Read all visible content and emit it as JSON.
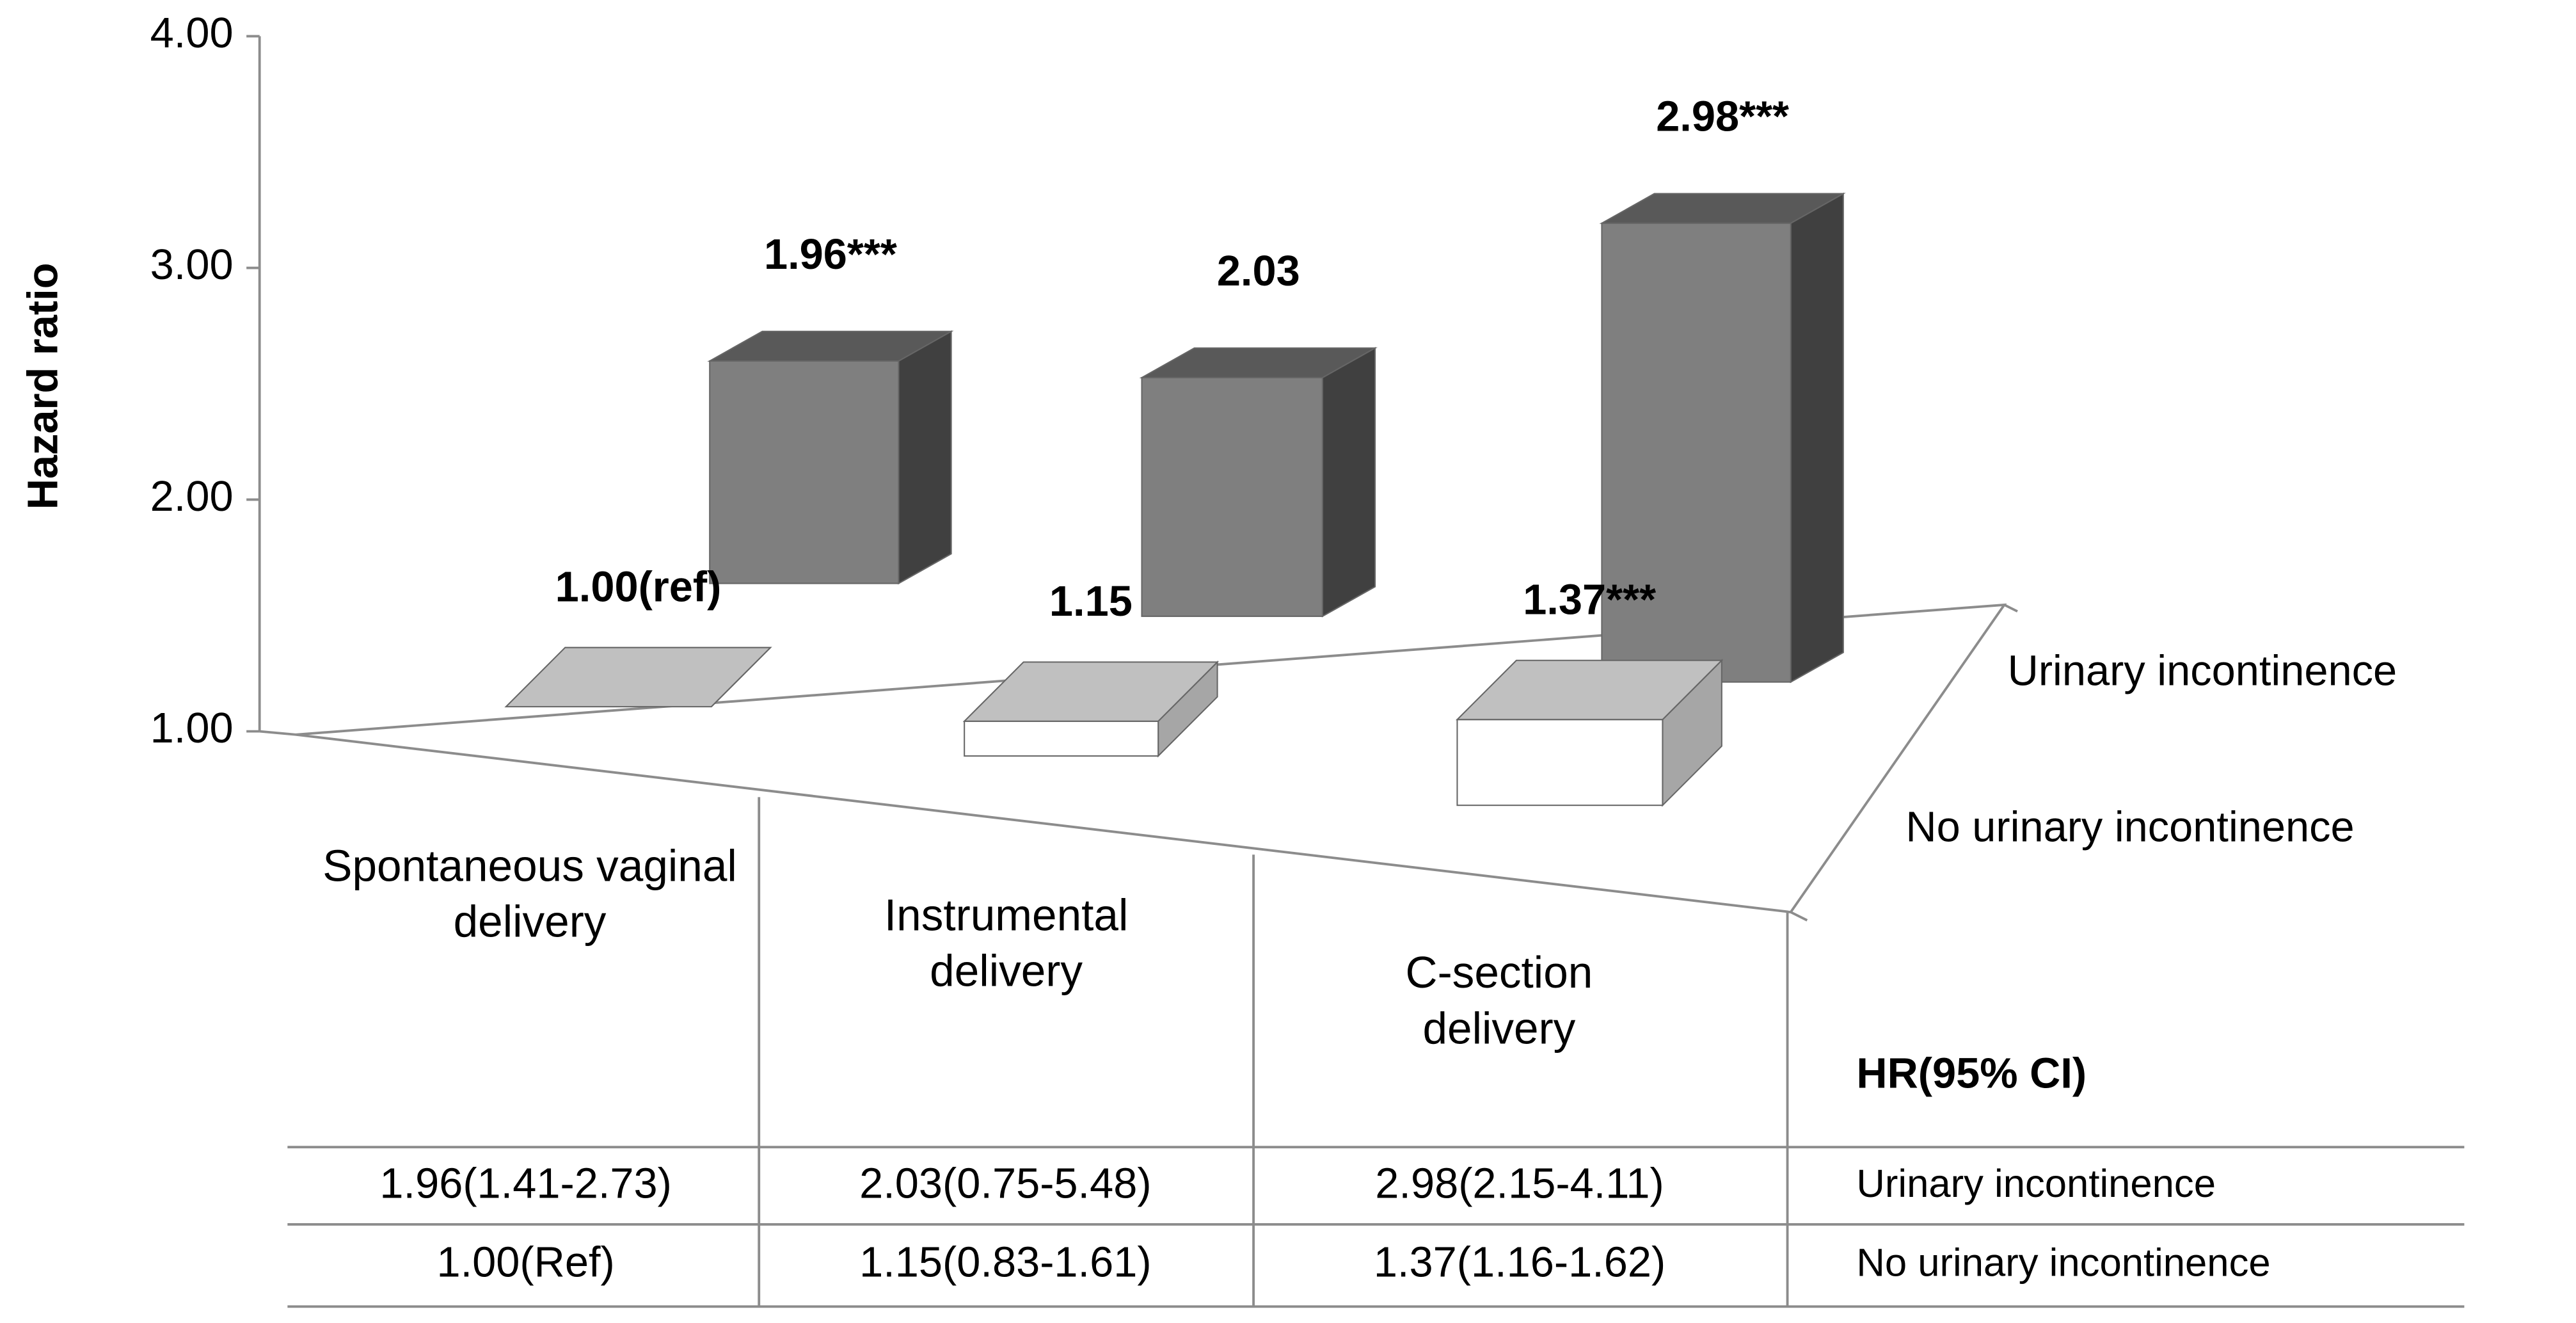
{
  "chart_data": {
    "type": "bar3d",
    "y_label": "Hazard ratio",
    "categories": [
      "Spontaneous vaginal delivery",
      "Instrumental delivery",
      "C-section delivery"
    ],
    "series": [
      {
        "name": "Urinary incontinence",
        "color": "#7f7f7f",
        "values": [
          1.96,
          2.03,
          2.98
        ],
        "value_labels": [
          "1.96***",
          "2.03",
          "2.98***"
        ]
      },
      {
        "name": "No urinary incontinence",
        "color": "#ffffff",
        "values": [
          1.0,
          1.15,
          1.37
        ],
        "value_labels": [
          "1.00(ref)",
          "1.15",
          "1.37***"
        ]
      }
    ],
    "ylim": [
      1,
      4
    ],
    "yticks": [
      {
        "value": 1,
        "label": "1.00"
      },
      {
        "value": 2,
        "label": "2.00"
      },
      {
        "value": 3,
        "label": "3.00"
      },
      {
        "value": 4,
        "label": "4.00"
      }
    ],
    "table": {
      "header": "HR(95% CI)",
      "rows": [
        [
          "1.96(1.41-2.73)",
          "2.03(0.75-5.48)",
          "2.98(2.15-4.11)"
        ],
        [
          "1.00(Ref)",
          "1.15(0.83-1.61)",
          "1.37(1.16-1.62)"
        ]
      ]
    }
  }
}
